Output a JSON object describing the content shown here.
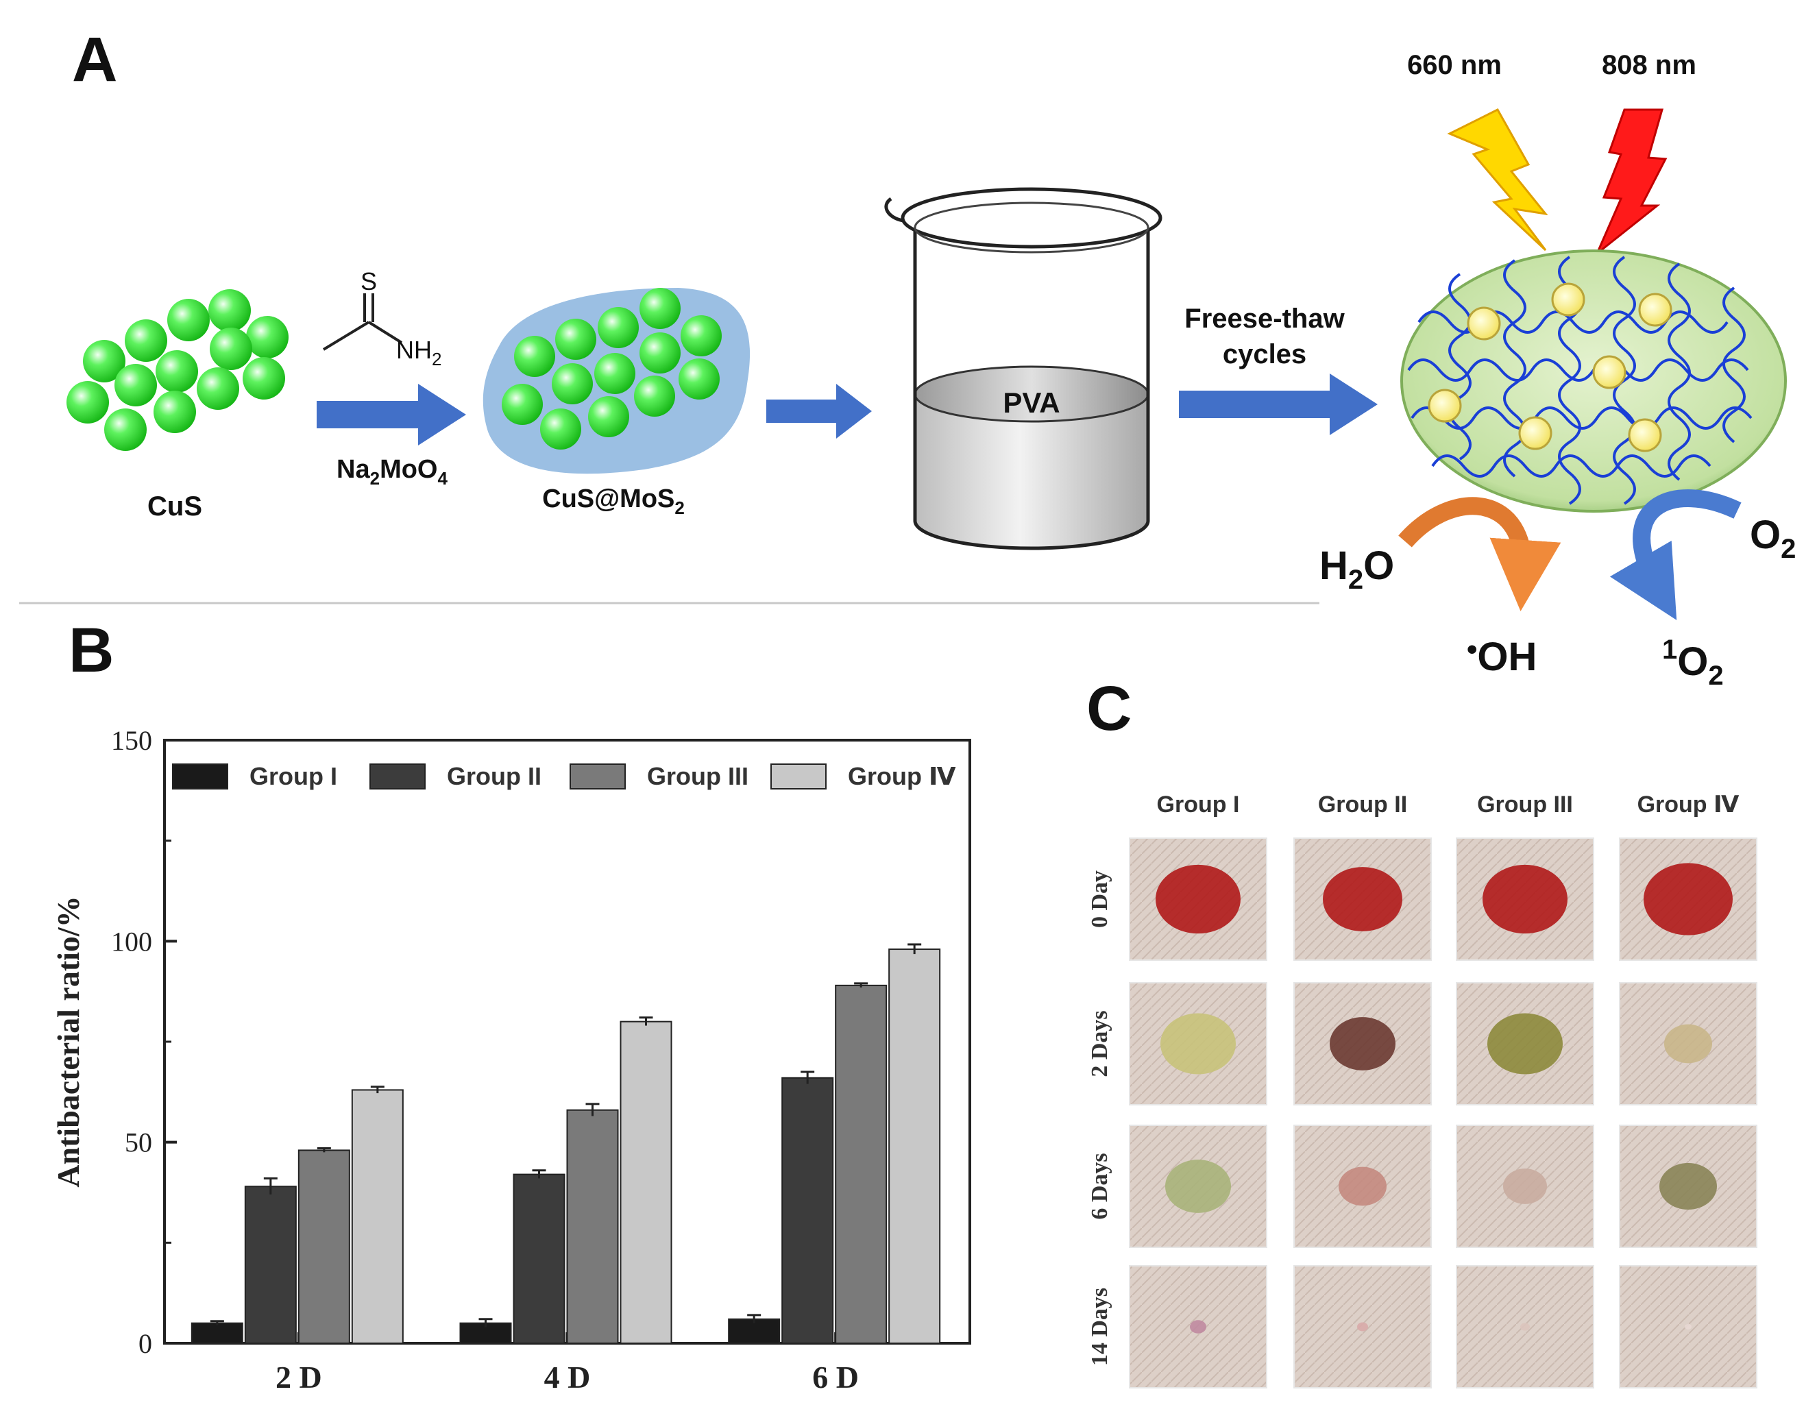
{
  "panel_a": {
    "label": "A",
    "cus_label": "CuS",
    "reagent_s": "S",
    "reagent_nh2_base": "NH",
    "reagent_nh2_sub": "2",
    "reagent2_a": "Na",
    "reagent2_sub1": "2",
    "reagent2_b": "MoO",
    "reagent2_sub2": "4",
    "core_shell_label": "CuS@MoS",
    "core_shell_sub": "2",
    "pva_label": "PVA",
    "step_line1": "Freese-thaw",
    "step_line2": "cycles",
    "light1": "660 nm",
    "light2": "808 nm",
    "h2o_a": "H",
    "h2o_sub": "2",
    "h2o_b": "O",
    "oh_dot": "•",
    "oh": "OH",
    "o2_base": "O",
    "o2_sub": "2",
    "singlet_sup": "1",
    "singlet_base": "O",
    "singlet_sub": "2"
  },
  "panel_b": {
    "label": "B"
  },
  "panel_c": {
    "label": "C",
    "groups": [
      "Group I",
      "Group II",
      "Group III",
      "Group Ⅳ"
    ],
    "rows": [
      "0 Day",
      "2 Days",
      "6 Days",
      "14 Days"
    ]
  },
  "chart_data": {
    "type": "bar",
    "categories": [
      "2 D",
      "4 D",
      "6 D"
    ],
    "ylabel": "Antibacterial ratio/%",
    "xlabel": "",
    "ylim": [
      0,
      150
    ],
    "yticks": [
      0,
      50,
      100,
      150
    ],
    "legend_position": "top",
    "series": [
      {
        "name": "Group I",
        "color": "#1a1a1a",
        "values": [
          5,
          5,
          6
        ],
        "errors": [
          0.5,
          1,
          1
        ]
      },
      {
        "name": "Group II",
        "color": "#3c3c3c",
        "values": [
          39,
          42,
          66
        ],
        "errors": [
          2,
          1,
          1.5
        ]
      },
      {
        "name": "Group III",
        "color": "#7a7a7a",
        "values": [
          48,
          58,
          89
        ],
        "errors": [
          0.5,
          1.5,
          0.5
        ]
      },
      {
        "name": "Group Ⅳ",
        "color": "#c8c8c8",
        "values": [
          63,
          80,
          98
        ],
        "errors": [
          0.8,
          1,
          1.2
        ]
      }
    ]
  }
}
